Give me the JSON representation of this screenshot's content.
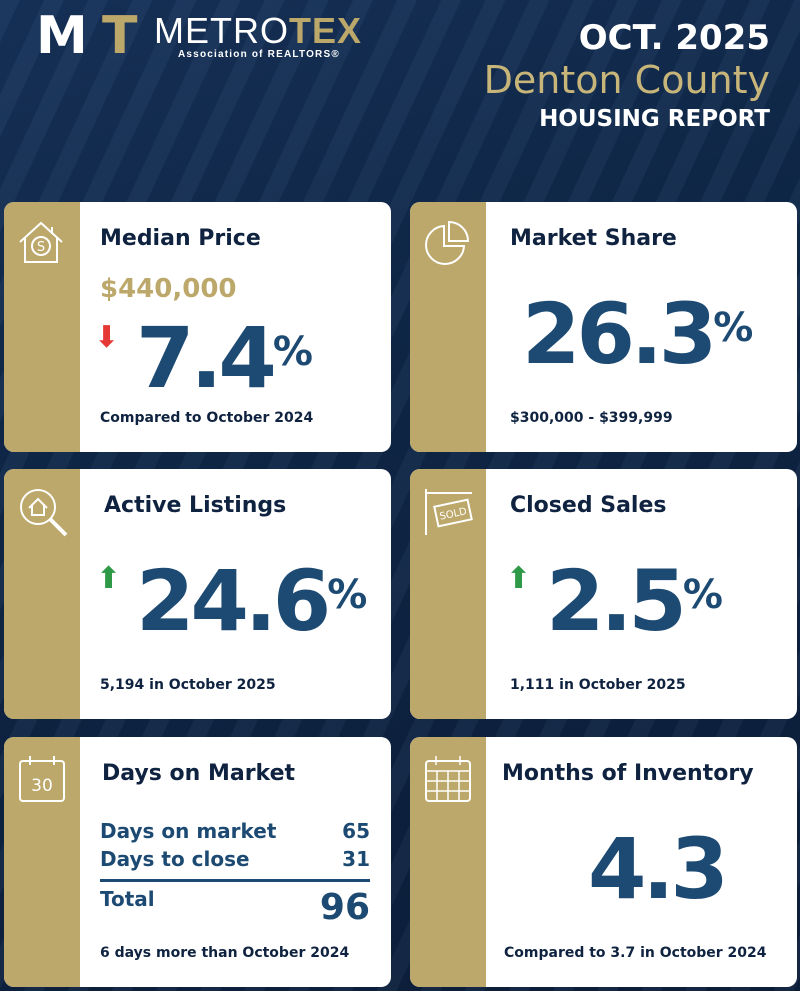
{
  "header": {
    "logo_text": "METROTEX",
    "logo_sub": "Association of REALTORS®",
    "date": "OCT. 2025",
    "county": "Denton County",
    "report": "HOUSING REPORT"
  },
  "colors": {
    "navy": "#0f2545",
    "gold": "#bca86a",
    "number": "#1d4a72",
    "down": "#e53935",
    "up": "#2e9a47"
  },
  "cards": {
    "median_price": {
      "icon": "house-dollar-icon",
      "title": "Median Price",
      "price": "$440,000",
      "direction": "down",
      "value": "7.4",
      "unit": "%",
      "note": "Compared to October 2024"
    },
    "market_share": {
      "icon": "pie-chart-icon",
      "title": "Market Share",
      "value": "26.3",
      "unit": "%",
      "note": "$300,000 - $399,999"
    },
    "active_listings": {
      "icon": "house-search-icon",
      "title": "Active Listings",
      "direction": "up",
      "value": "24.6",
      "unit": "%",
      "note": "5,194 in October 2025"
    },
    "closed_sales": {
      "icon": "sold-sign-icon",
      "title": "Closed Sales",
      "direction": "up",
      "value": "2.5",
      "unit": "%",
      "note": "1,111 in October 2025"
    },
    "days_on_market": {
      "icon": "calendar-30-icon",
      "title": "Days on Market",
      "calendar_number": "30",
      "rows": [
        {
          "label": "Days on market",
          "value": "65"
        },
        {
          "label": "Days to close",
          "value": "31"
        }
      ],
      "total_label": "Total",
      "total_value": "96",
      "note": "6 days more than October 2024"
    },
    "months_inventory": {
      "icon": "calendar-grid-icon",
      "title": "Months of Inventory",
      "value": "4.3",
      "note": "Compared to 3.7 in October 2024"
    }
  }
}
